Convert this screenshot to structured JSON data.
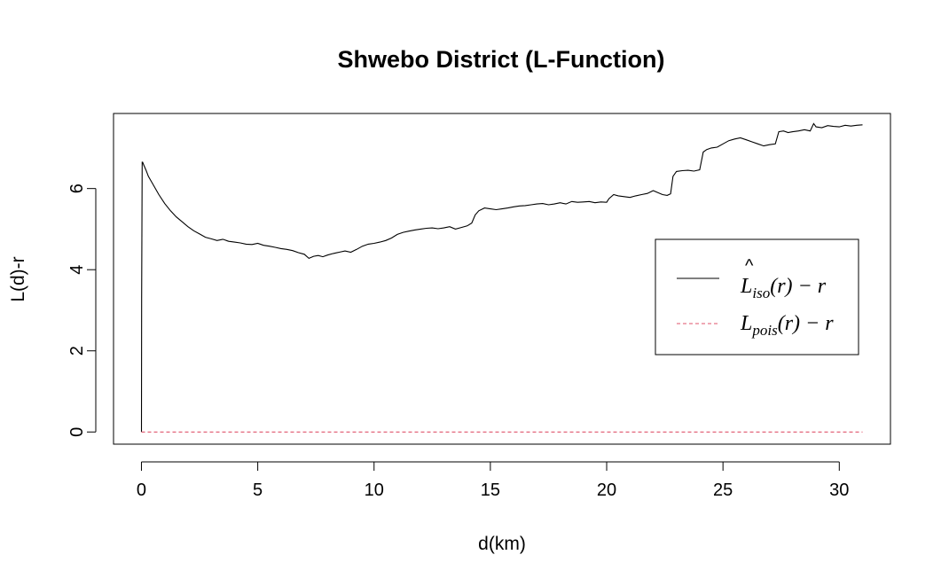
{
  "chart_data": {
    "type": "line",
    "title": "Shwebo District (L-Function)",
    "xlabel": "d(km)",
    "ylabel": "L(d)-r",
    "xlim": [
      -1.2,
      32.2
    ],
    "ylim": [
      -0.3,
      7.85
    ],
    "xticks": [
      0,
      5,
      10,
      15,
      20,
      25,
      30
    ],
    "yticks": [
      0,
      2,
      4,
      6
    ],
    "grid": false,
    "legend_position": "right",
    "series": [
      {
        "name": "L̂_iso(r) − r",
        "legend_main": "L",
        "legend_sub": "iso",
        "legend_tail": "(r) − r",
        "color": "#000000",
        "dash": "solid",
        "x": [
          0,
          0.01,
          0.03,
          0.05,
          0.1,
          0.2,
          0.3,
          0.5,
          0.75,
          1.0,
          1.25,
          1.5,
          1.75,
          2.0,
          2.25,
          2.5,
          2.75,
          3.0,
          3.25,
          3.5,
          3.75,
          4.0,
          4.25,
          4.5,
          4.75,
          5.0,
          5.25,
          5.5,
          5.75,
          6.0,
          6.25,
          6.5,
          6.75,
          7.0,
          7.2,
          7.4,
          7.6,
          7.8,
          8.0,
          8.25,
          8.5,
          8.75,
          9.0,
          9.25,
          9.5,
          9.75,
          10.0,
          10.25,
          10.5,
          10.75,
          11.0,
          11.25,
          11.5,
          11.75,
          12.0,
          12.25,
          12.5,
          12.75,
          13.0,
          13.25,
          13.5,
          13.75,
          14.0,
          14.2,
          14.35,
          14.5,
          14.75,
          15.0,
          15.25,
          15.5,
          15.75,
          16.0,
          16.25,
          16.5,
          16.75,
          17.0,
          17.25,
          17.5,
          17.75,
          18.0,
          18.25,
          18.5,
          18.75,
          19.0,
          19.25,
          19.5,
          19.75,
          20.0,
          20.1,
          20.3,
          20.5,
          20.75,
          21.0,
          21.25,
          21.5,
          21.75,
          22.0,
          22.2,
          22.4,
          22.6,
          22.75,
          22.85,
          23.0,
          23.25,
          23.5,
          23.75,
          24.0,
          24.15,
          24.3,
          24.5,
          24.75,
          25.0,
          25.25,
          25.5,
          25.75,
          26.0,
          26.25,
          26.5,
          26.75,
          27.0,
          27.25,
          27.4,
          27.6,
          27.8,
          28.0,
          28.25,
          28.5,
          28.75,
          28.9,
          29.0,
          29.25,
          29.5,
          29.75,
          30.0,
          30.25,
          30.5,
          30.75,
          31.0
        ],
        "y": [
          0,
          3.3,
          6.65,
          6.65,
          6.58,
          6.45,
          6.3,
          6.1,
          5.85,
          5.63,
          5.45,
          5.3,
          5.18,
          5.06,
          4.96,
          4.88,
          4.8,
          4.76,
          4.72,
          4.75,
          4.7,
          4.68,
          4.66,
          4.63,
          4.62,
          4.65,
          4.6,
          4.58,
          4.55,
          4.52,
          4.5,
          4.47,
          4.42,
          4.38,
          4.28,
          4.33,
          4.35,
          4.32,
          4.36,
          4.4,
          4.43,
          4.46,
          4.43,
          4.5,
          4.58,
          4.63,
          4.65,
          4.68,
          4.72,
          4.78,
          4.87,
          4.92,
          4.95,
          4.98,
          5.0,
          5.02,
          5.03,
          5.01,
          5.03,
          5.06,
          5.0,
          5.04,
          5.08,
          5.15,
          5.35,
          5.45,
          5.52,
          5.5,
          5.48,
          5.5,
          5.52,
          5.55,
          5.57,
          5.58,
          5.6,
          5.62,
          5.63,
          5.6,
          5.62,
          5.65,
          5.62,
          5.68,
          5.66,
          5.67,
          5.68,
          5.65,
          5.67,
          5.66,
          5.75,
          5.85,
          5.82,
          5.8,
          5.78,
          5.82,
          5.85,
          5.88,
          5.95,
          5.9,
          5.85,
          5.83,
          5.87,
          6.3,
          6.42,
          6.44,
          6.45,
          6.43,
          6.46,
          6.9,
          6.96,
          7.0,
          7.02,
          7.1,
          7.18,
          7.22,
          7.25,
          7.2,
          7.15,
          7.1,
          7.05,
          7.08,
          7.1,
          7.4,
          7.42,
          7.38,
          7.4,
          7.42,
          7.45,
          7.42,
          7.6,
          7.52,
          7.5,
          7.55,
          7.53,
          7.52,
          7.56,
          7.54,
          7.56,
          7.57
        ]
      },
      {
        "name": "L_pois(r) − r",
        "legend_main": "L",
        "legend_sub": "pois",
        "legend_tail": "(r) − r",
        "color": "#DF536B",
        "dash": "dashed",
        "x": [
          0,
          31
        ],
        "y": [
          0,
          0
        ]
      }
    ]
  }
}
